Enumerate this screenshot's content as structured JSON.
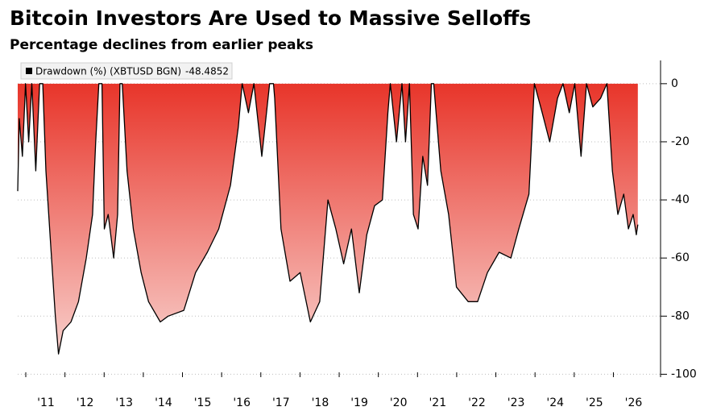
{
  "chart_data": {
    "type": "area",
    "title": "Bitcoin Investors Are Used to Massive Selloffs",
    "subtitle": "Percentage declines from earlier peaks",
    "x": [
      2010.28,
      2010.32,
      2010.4,
      2010.48,
      2010.56,
      2010.64,
      2010.74,
      2010.84,
      2010.92,
      2011.0,
      2011.12,
      2011.24,
      2011.32,
      2011.44,
      2011.64,
      2011.83,
      2012.03,
      2012.19,
      2012.27,
      2012.35,
      2012.43,
      2012.49,
      2012.59,
      2012.73,
      2012.83,
      2012.89,
      2012.95,
      2013.07,
      2013.23,
      2013.43,
      2013.62,
      2013.92,
      2014.12,
      2014.52,
      2014.82,
      2015.12,
      2015.41,
      2015.71,
      2015.91,
      2016.01,
      2016.17,
      2016.31,
      2016.51,
      2016.71,
      2016.81,
      2016.84,
      2017.0,
      2017.23,
      2017.49,
      2017.75,
      2017.99,
      2018.2,
      2018.4,
      2018.6,
      2018.8,
      2019.0,
      2019.19,
      2019.39,
      2019.59,
      2019.73,
      2019.79,
      2019.95,
      2020.09,
      2020.18,
      2020.28,
      2020.38,
      2020.5,
      2020.62,
      2020.74,
      2020.84,
      2020.9,
      2021.08,
      2021.28,
      2021.48,
      2021.78,
      2022.02,
      2022.27,
      2022.57,
      2022.87,
      2023.07,
      2023.33,
      2023.47,
      2023.67,
      2023.86,
      2024.06,
      2024.2,
      2024.36,
      2024.5,
      2024.66,
      2024.8,
      2024.96,
      2025.16,
      2025.32,
      2025.46,
      2025.6,
      2025.75,
      2025.87,
      2025.99,
      2026.07,
      2026.11
    ],
    "series": [
      {
        "name": "Drawdown (%) (XBTUSD BGN)",
        "color": "#000000",
        "values": [
          -37,
          -12,
          -25,
          0,
          -20,
          0,
          -30,
          0,
          0,
          -30,
          -55,
          -80,
          -93,
          -85,
          -82,
          -75,
          -60,
          -45,
          -20,
          0,
          0,
          -50,
          -45,
          -60,
          -45,
          0,
          0,
          -30,
          -50,
          -65,
          -75,
          -82,
          -80,
          -78,
          -65,
          -58,
          -50,
          -35,
          -15,
          0,
          -10,
          0,
          -25,
          0,
          0,
          -5,
          -50,
          -68,
          -65,
          -82,
          -75,
          -40,
          -50,
          -62,
          -50,
          -72,
          -52,
          -42,
          -40,
          -10,
          0,
          -20,
          0,
          -20,
          0,
          -45,
          -50,
          -25,
          -35,
          0,
          0,
          -30,
          -45,
          -70,
          -75,
          -75,
          -65,
          -58,
          -60,
          -50,
          -38,
          0,
          -10,
          -20,
          -5,
          0,
          -10,
          0,
          -25,
          0,
          -8,
          -5,
          0,
          -30,
          -45,
          -38,
          -50,
          -45,
          -52,
          -48.4852
        ]
      }
    ],
    "fill_top_color": "#e8352a",
    "fill_bottom_color": "#f8cfcb",
    "xlim": [
      2010.28,
      2026.69
    ],
    "xticks": [
      {
        "value": 2011,
        "label": "'11"
      },
      {
        "value": 2012,
        "label": "'12"
      },
      {
        "value": 2013,
        "label": "'13"
      },
      {
        "value": 2014,
        "label": "'14"
      },
      {
        "value": 2015,
        "label": "'15"
      },
      {
        "value": 2016,
        "label": "'16"
      },
      {
        "value": 2017,
        "label": "'17"
      },
      {
        "value": 2018,
        "label": "'18"
      },
      {
        "value": 2019,
        "label": "'19"
      },
      {
        "value": 2020,
        "label": "'20"
      },
      {
        "value": 2021,
        "label": "'21"
      },
      {
        "value": 2022,
        "label": "'22"
      },
      {
        "value": 2023,
        "label": "'23"
      },
      {
        "value": 2024,
        "label": "'24"
      },
      {
        "value": 2025,
        "label": "'25"
      },
      {
        "value": 2026,
        "label": "'26"
      }
    ],
    "ylim": [
      -101,
      8
    ],
    "yticks": [
      0,
      -20,
      -40,
      -60,
      -80,
      -100
    ],
    "grid": true
  }
}
